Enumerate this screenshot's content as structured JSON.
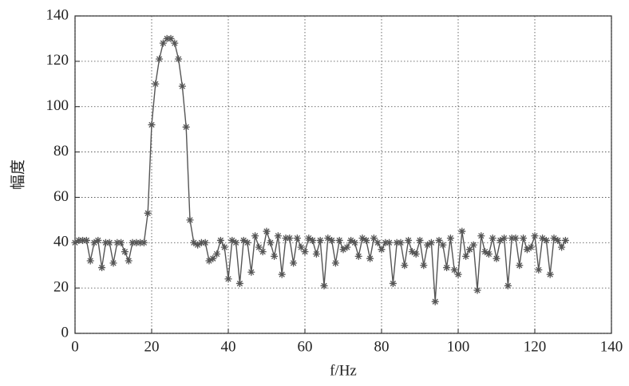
{
  "chart_data": {
    "type": "line",
    "x_label": "f/Hz",
    "y_label": "幅度",
    "x": [
      0,
      1,
      2,
      3,
      4,
      5,
      6,
      7,
      8,
      9,
      10,
      11,
      12,
      13,
      14,
      15,
      16,
      17,
      18,
      19,
      20,
      21,
      22,
      23,
      24,
      25,
      26,
      27,
      28,
      29,
      30,
      31,
      32,
      33,
      34,
      35,
      36,
      37,
      38,
      39,
      40,
      41,
      42,
      43,
      44,
      45,
      46,
      47,
      48,
      49,
      50,
      51,
      52,
      53,
      54,
      55,
      56,
      57,
      58,
      59,
      60,
      61,
      62,
      63,
      64,
      65,
      66,
      67,
      68,
      69,
      70,
      71,
      72,
      73,
      74,
      75,
      76,
      77,
      78,
      79,
      80,
      81,
      82,
      83,
      84,
      85,
      86,
      87,
      88,
      89,
      90,
      91,
      92,
      93,
      94,
      95,
      96,
      97,
      98,
      99,
      100,
      101,
      102,
      103,
      104,
      105,
      106,
      107,
      108,
      109,
      110,
      111,
      112,
      113,
      114,
      115,
      116,
      117,
      118,
      119,
      120,
      121,
      122,
      123,
      124,
      125,
      126,
      127,
      128
    ],
    "series": [
      {
        "color": "#555555",
        "values": [
          40,
          41,
          41,
          41,
          32,
          40,
          41,
          29,
          40,
          40,
          31,
          40,
          40,
          36,
          32,
          40,
          40,
          40,
          40,
          53,
          92,
          110,
          121,
          128,
          130,
          130,
          128,
          121,
          109,
          91,
          50,
          40,
          39,
          40,
          40,
          32,
          33,
          35,
          41,
          38,
          24,
          41,
          40,
          22,
          41,
          40,
          27,
          43,
          38,
          36,
          45,
          40,
          34,
          43,
          26,
          42,
          42,
          31,
          42,
          38,
          36,
          42,
          41,
          35,
          41,
          21,
          42,
          41,
          31,
          41,
          37,
          38,
          41,
          40,
          34,
          42,
          41,
          33,
          42,
          40,
          37,
          40,
          40,
          22,
          40,
          40,
          30,
          41,
          36,
          35,
          41,
          30,
          39,
          40,
          14,
          41,
          39,
          29,
          42,
          28,
          26,
          45,
          34,
          37,
          39,
          19,
          43,
          36,
          35,
          42,
          33,
          41,
          42,
          21,
          42,
          42,
          30,
          42,
          37,
          38,
          43,
          28,
          42,
          41,
          26,
          42,
          41,
          38,
          41
        ]
      }
    ],
    "xlim": [
      0,
      140
    ],
    "xticks": [
      0,
      20,
      40,
      60,
      80,
      100,
      120,
      140
    ],
    "ylim": [
      0,
      140
    ],
    "yticks": [
      0,
      20,
      40,
      60,
      80,
      100,
      120,
      140
    ],
    "grid": true
  }
}
